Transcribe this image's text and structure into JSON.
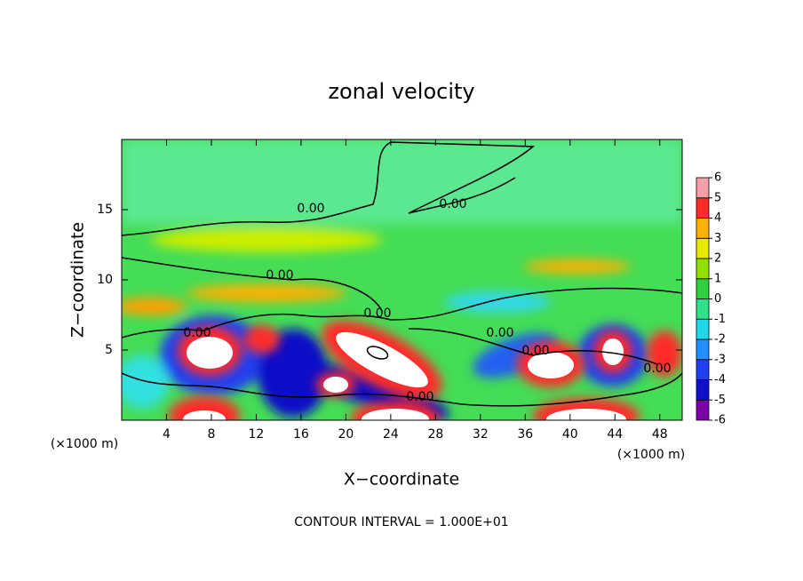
{
  "chart_data": {
    "type": "contour",
    "title": "zonal velocity",
    "xlabel": "X−coordinate",
    "ylabel": "Z−coordinate",
    "xunit": "(×1000 m)",
    "yunit": "(×1000 m)",
    "footnote": "CONTOUR INTERVAL = 1.000E+01",
    "xlim": [
      0,
      50
    ],
    "xticks": [
      4,
      8,
      12,
      16,
      20,
      24,
      28,
      32,
      36,
      40,
      44,
      48
    ],
    "ylim": [
      0,
      20
    ],
    "yticks": [
      5,
      10,
      15
    ],
    "contour_labels": [
      "0.00",
      "0.00",
      "0.00",
      "0.00",
      "0.00",
      "0.00",
      "0.00",
      "0.00",
      "0.00"
    ],
    "colorbar": {
      "levels": [
        -6,
        -5,
        -4,
        -3,
        -2,
        -1,
        0,
        1,
        2,
        3,
        4,
        5,
        6
      ],
      "colors": [
        "#7a00a8",
        "#1010c8",
        "#2040f0",
        "#2090ff",
        "#20d8e8",
        "#30e08a",
        "#30d040",
        "#90e000",
        "#eaea00",
        "#ffb000",
        "#ff2a2a",
        "#f4a0a8"
      ]
    }
  }
}
